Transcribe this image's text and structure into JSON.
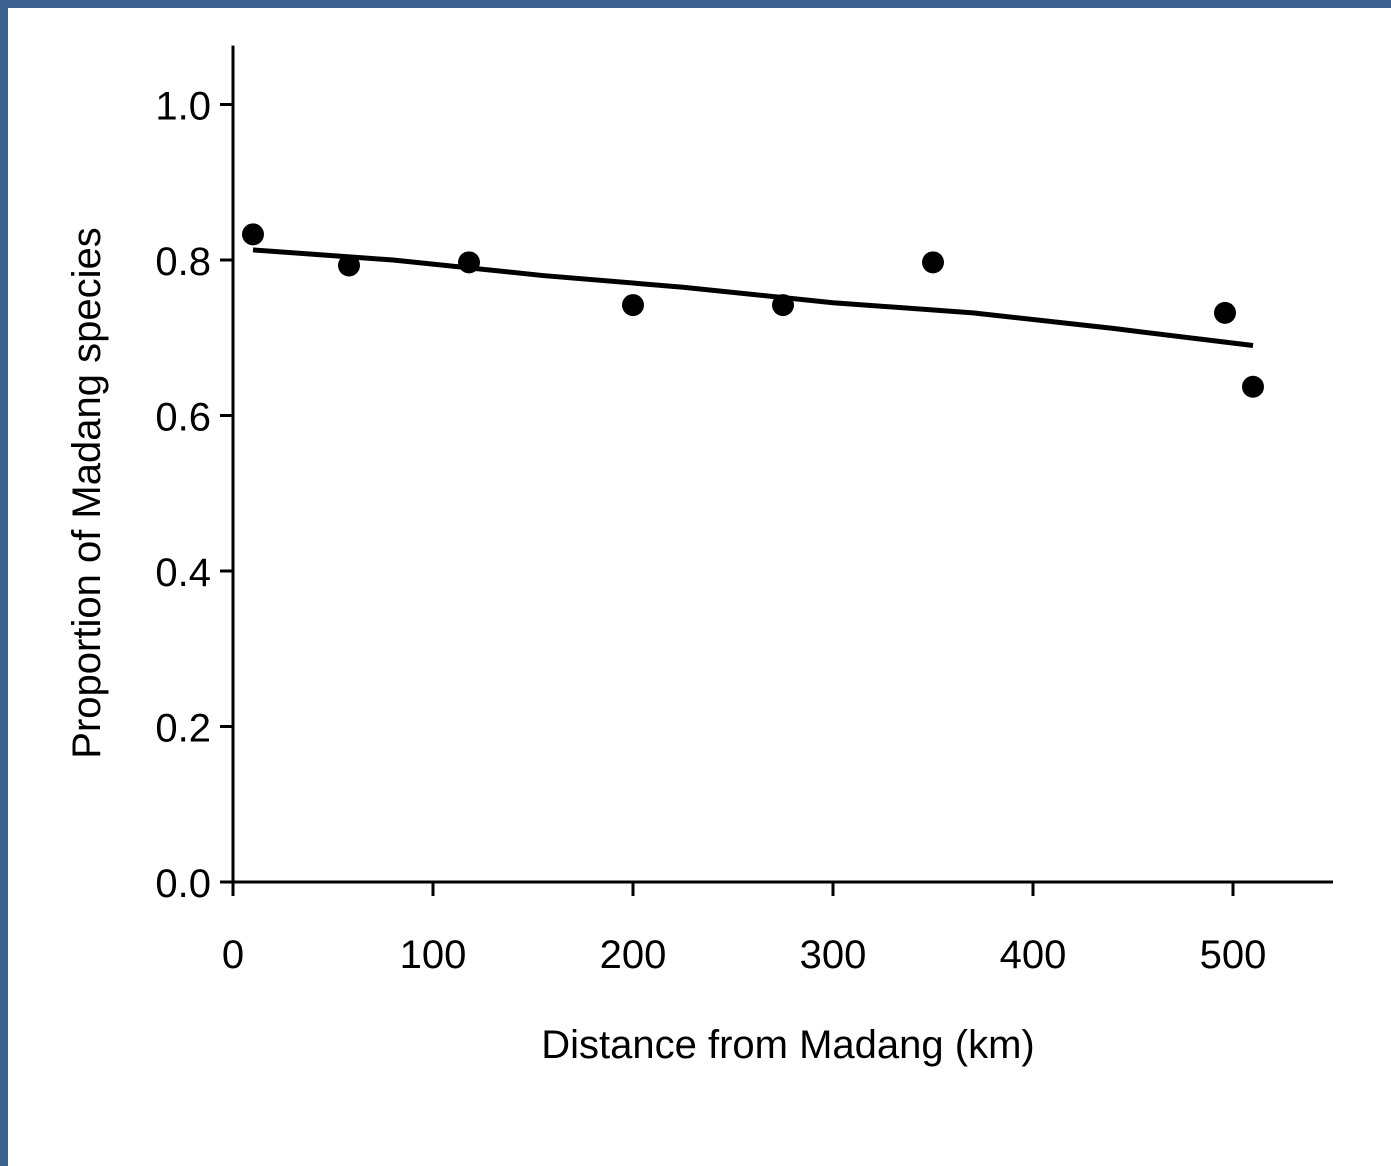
{
  "chart_data": {
    "type": "scatter",
    "xlabel": "Distance from Madang (km)",
    "ylabel": "Proportion of Madang species",
    "xlim": [
      0,
      550
    ],
    "ylim": [
      0,
      1.05
    ],
    "x_ticks": [
      "0",
      "100",
      "200",
      "300",
      "400",
      "500"
    ],
    "x_tick_values": [
      0,
      100,
      200,
      300,
      400,
      500
    ],
    "y_ticks": [
      "0.0",
      "0.2",
      "0.4",
      "0.6",
      "0.8",
      "1.0"
    ],
    "y_tick_values": [
      0,
      0.2,
      0.4,
      0.6,
      0.8,
      1.0
    ],
    "grid": false,
    "points": [
      {
        "x": 10,
        "y": 0.833
      },
      {
        "x": 58,
        "y": 0.793
      },
      {
        "x": 118,
        "y": 0.797
      },
      {
        "x": 200,
        "y": 0.742
      },
      {
        "x": 275,
        "y": 0.742
      },
      {
        "x": 350,
        "y": 0.797
      },
      {
        "x": 496,
        "y": 0.732
      },
      {
        "x": 510,
        "y": 0.637
      }
    ],
    "trend_line": {
      "x": [
        10,
        80,
        155,
        225,
        300,
        370,
        440,
        510
      ],
      "y": [
        0.813,
        0.8,
        0.78,
        0.765,
        0.745,
        0.732,
        0.712,
        0.69
      ]
    },
    "colors": {
      "points": "#000000",
      "line": "#000000",
      "background": "#ffffff",
      "frame": "#3f6390"
    }
  }
}
